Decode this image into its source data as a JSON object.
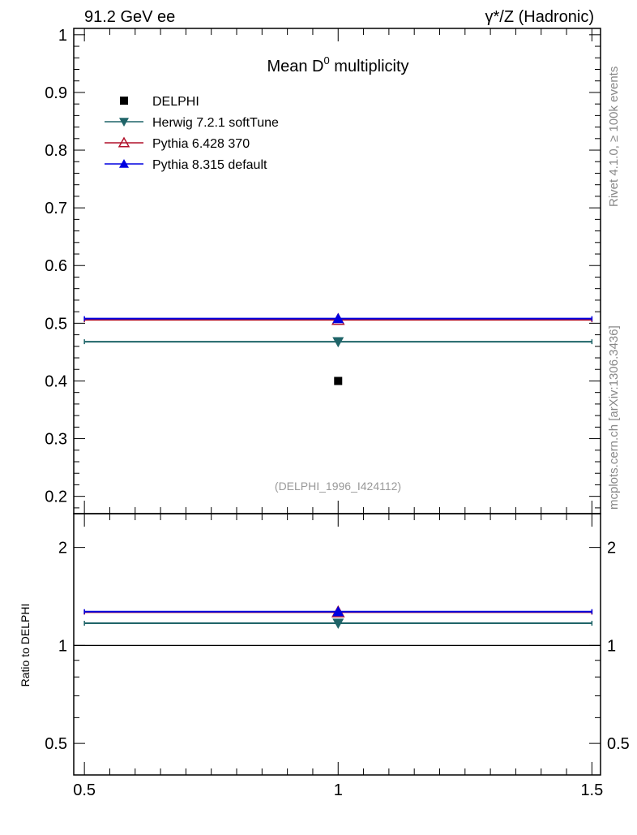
{
  "header": {
    "left": "91.2 GeV ee",
    "right": "γ*/Z (Hadronic)"
  },
  "side_labels": {
    "rivet": "Rivet 4.1.0, ≥ 100k events",
    "mcplots": "mcplots.cern.ch [arXiv:1306.3436]"
  },
  "chart_data": [
    {
      "type": "scatter",
      "title": "Mean D⁰ multiplicity",
      "title_main": "Mean D",
      "title_sup": "0",
      "title_rest": " multiplicity",
      "annotation": "(DELPHI_1996_I424112)",
      "xlim": [
        0.479,
        1.517
      ],
      "ylim": [
        0.17,
        1.011
      ],
      "yticks": [
        0.2,
        0.3,
        0.4,
        0.5,
        0.6,
        0.7,
        0.8,
        0.9,
        1
      ],
      "ytick_labels": [
        "0.2",
        "0.3",
        "0.4",
        "0.5",
        "0.6",
        "0.7",
        "0.8",
        "0.9",
        "1"
      ],
      "legend_placement": "top-left",
      "series": [
        {
          "name": "DELPHI",
          "marker": "square",
          "color": "#000000",
          "x": 1,
          "y": 0.4,
          "xerr": [
            0.5,
            1.5
          ],
          "line": false
        },
        {
          "name": "Herwig 7.2.1 softTune",
          "marker": "triangle-down",
          "color": "#1f6468",
          "x": 1,
          "y": 0.468,
          "xerr": [
            0.5,
            1.5
          ],
          "line": true
        },
        {
          "name": "Pythia 6.428 370",
          "marker": "triangle-up-open",
          "color": "#b0102a",
          "x": 1,
          "y": 0.506,
          "xerr": [
            0.5,
            1.5
          ],
          "line": true
        },
        {
          "name": "Pythia 8.315 default",
          "marker": "triangle-up",
          "color": "#0000e0",
          "x": 1,
          "y": 0.508,
          "xerr": [
            0.5,
            1.5
          ],
          "line": true
        }
      ]
    },
    {
      "type": "scatter",
      "ylabel": "Ratio to DELPHI",
      "yscale": "log",
      "ylim": [
        0.4,
        2.54
      ],
      "yticks": [
        0.5,
        1,
        2
      ],
      "ytick_labels": [
        "0.5",
        "1",
        "2"
      ],
      "xticks": [
        0.5,
        1,
        1.5
      ],
      "xtick_labels": [
        "0.5",
        "1",
        "1.5"
      ],
      "reference": 1,
      "series": [
        {
          "name": "Herwig 7.2.1 softTune",
          "color": "#1f6468",
          "marker": "triangle-down",
          "x": 1,
          "y": 1.17
        },
        {
          "name": "Pythia 6.428 370",
          "color": "#b0102a",
          "marker": "triangle-up-open",
          "x": 1,
          "y": 1.265
        },
        {
          "name": "Pythia 8.315 default",
          "color": "#0000e0",
          "marker": "triangle-up",
          "x": 1,
          "y": 1.27
        }
      ]
    }
  ]
}
